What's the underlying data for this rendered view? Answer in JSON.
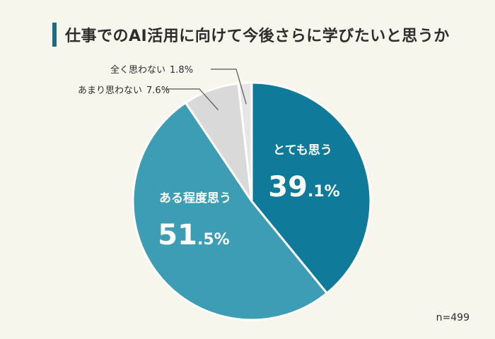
{
  "header": {
    "title": "仕事でのAI活用に向けて今後さらに学びたいと思うか"
  },
  "colors": {
    "title_accent": "#1a6a80",
    "background": "#f7f6ec",
    "slice_1": "#0f7a99",
    "slice_2": "#3d9db5",
    "slice_3": "#d9d9d9",
    "slice_4": "#e6e6e6"
  },
  "footnote": {
    "n": "n=499"
  },
  "chart_data": {
    "type": "pie",
    "title": "仕事でのAI活用に向けて今後さらに学びたいと思うか",
    "slices": [
      {
        "label": "とても思う",
        "value": 39.1,
        "value_int": "39",
        "value_dec": ".1%",
        "color": "#0f7a99"
      },
      {
        "label": "ある程度思う",
        "value": 51.5,
        "value_int": "51",
        "value_dec": ".5%",
        "color": "#3d9db5"
      },
      {
        "label": "あまり思わない",
        "value": 7.6,
        "value_text": "7.6%",
        "color": "#d9d9d9"
      },
      {
        "label": "全く思わない",
        "value": 1.8,
        "value_text": "1.8%",
        "color": "#e6e6e6"
      }
    ],
    "start": "12 o'clock",
    "direction": "clockwise"
  }
}
